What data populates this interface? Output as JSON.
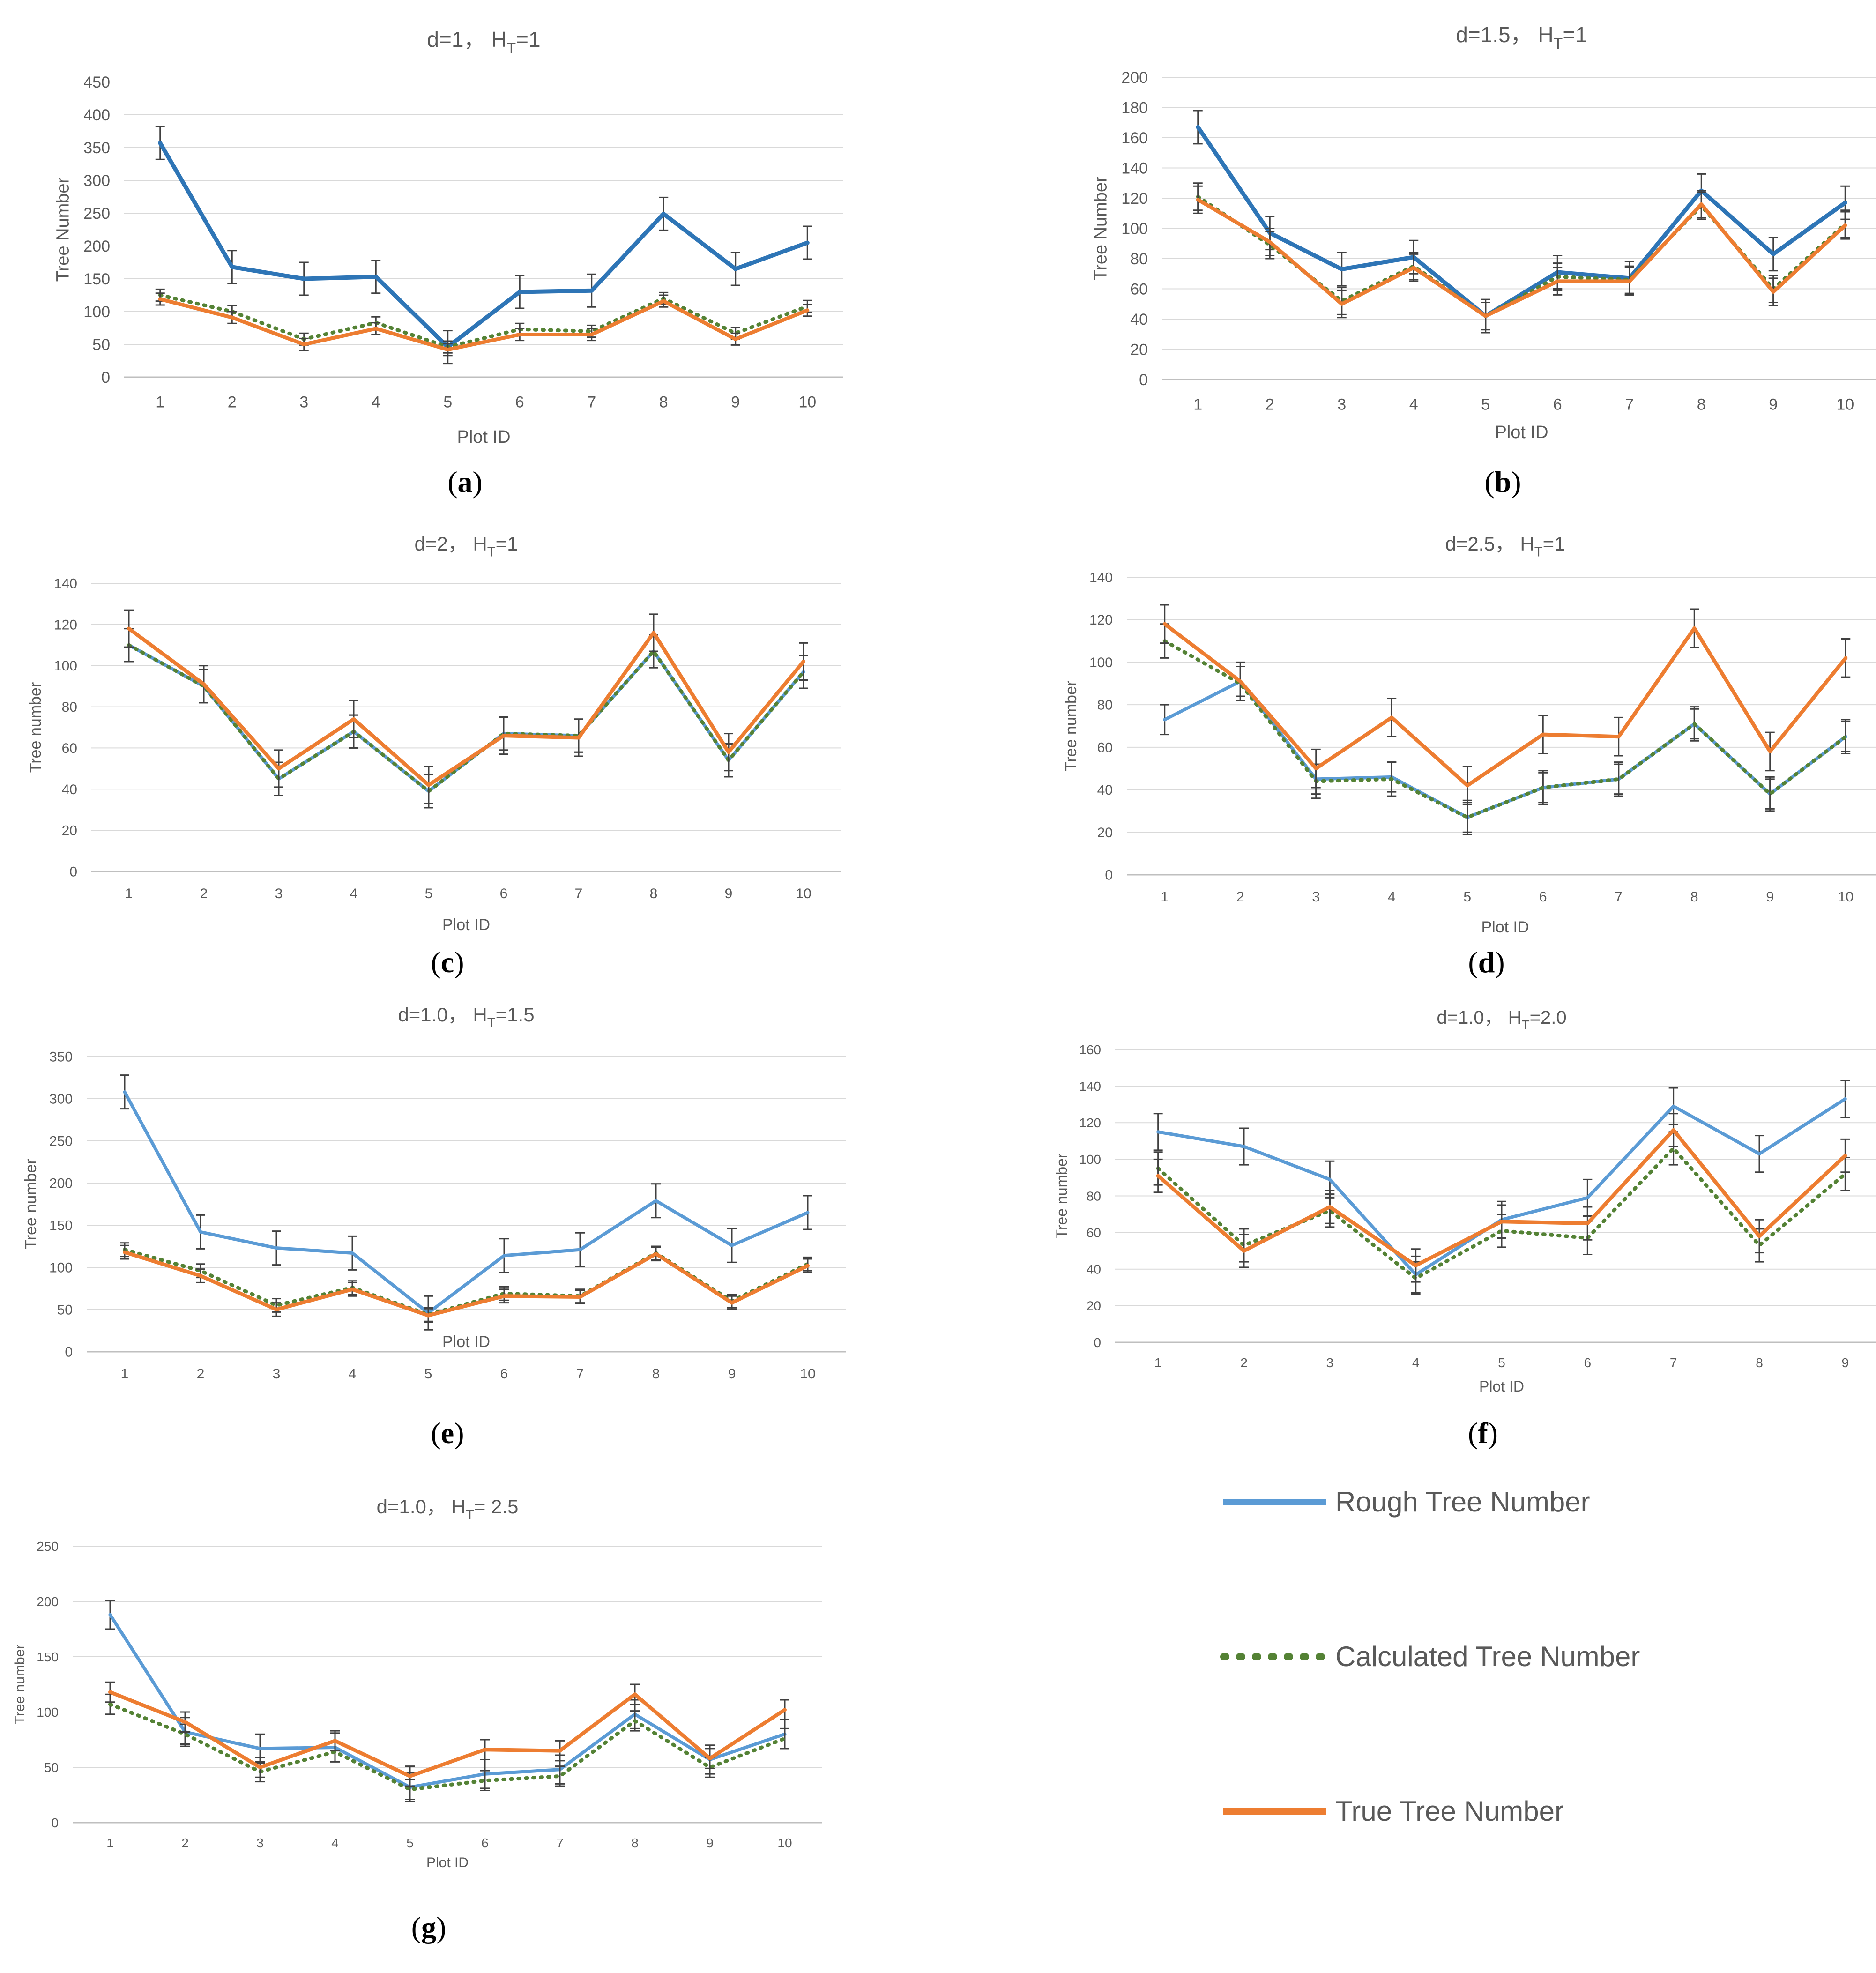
{
  "legend": {
    "items": [
      {
        "label": "Rough Tree Number",
        "color": "#5B9BD5",
        "style": "solid"
      },
      {
        "label": "Calculated Tree Number",
        "color": "#548235",
        "style": "dotted"
      },
      {
        "label": "True Tree Number",
        "color": "#ED7D31",
        "style": "solid"
      }
    ]
  },
  "chart_data": [
    {
      "id": "a",
      "panel_label": "a",
      "type": "line",
      "title_main": "d=1，  H",
      "title_sub": "T",
      "title_rest": "=1",
      "xlabel": "Plot ID",
      "ylabel": "Tree Number",
      "x": [
        1,
        2,
        3,
        4,
        5,
        6,
        7,
        8,
        9,
        10
      ],
      "ylim": [
        0,
        450
      ],
      "ystep": 50,
      "rough_color": "#2E75B6",
      "series": [
        {
          "name": "Rough Tree Number",
          "values": [
            357,
            168,
            150,
            153,
            46,
            130,
            132,
            249,
            165,
            205
          ],
          "error": [
            25,
            25,
            25,
            25,
            25,
            25,
            25,
            25,
            25,
            25
          ]
        },
        {
          "name": "Calculated Tree Number",
          "values": [
            125,
            100,
            58,
            83,
            46,
            73,
            70,
            120,
            67,
            108
          ],
          "error": [
            9,
            9,
            9,
            9,
            9,
            9,
            9,
            9,
            9,
            9
          ]
        },
        {
          "name": "True Tree Number",
          "values": [
            119,
            91,
            50,
            74,
            42,
            65,
            65,
            116,
            58,
            102
          ],
          "error": [
            9,
            9,
            9,
            9,
            9,
            9,
            9,
            9,
            9,
            9
          ]
        }
      ]
    },
    {
      "id": "b",
      "panel_label": "b",
      "type": "line",
      "title_main": "d=1.5，  H",
      "title_sub": "T",
      "title_rest": "=1",
      "xlabel": "Plot ID",
      "ylabel": "Tree Number",
      "x": [
        1,
        2,
        3,
        4,
        5,
        6,
        7,
        8,
        9,
        10
      ],
      "ylim": [
        0,
        200
      ],
      "ystep": 20,
      "rough_color": "#2E75B6",
      "series": [
        {
          "name": "Rough Tree Number",
          "values": [
            167,
            97,
            73,
            81,
            42,
            71,
            67,
            125,
            83,
            117
          ],
          "error": [
            11,
            11,
            11,
            11,
            11,
            11,
            11,
            11,
            11,
            11
          ]
        },
        {
          "name": "Calculated Tree Number",
          "values": [
            121,
            89,
            52,
            75,
            42,
            68,
            66,
            115,
            60,
            103
          ],
          "error": [
            9,
            9,
            9,
            9,
            9,
            9,
            9,
            9,
            9,
            9
          ]
        },
        {
          "name": "True Tree Number",
          "values": [
            119,
            91,
            50,
            74,
            42,
            65,
            65,
            116,
            58,
            102
          ],
          "error": [
            9,
            9,
            9,
            9,
            9,
            9,
            9,
            9,
            9,
            9
          ]
        }
      ]
    },
    {
      "id": "c",
      "panel_label": "c",
      "type": "line",
      "title_main": "d=2，  H",
      "title_sub": "T",
      "title_rest": "=1",
      "xlabel": "Plot ID",
      "ylabel": "Tree number",
      "x": [
        1,
        2,
        3,
        4,
        5,
        6,
        7,
        8,
        9,
        10
      ],
      "ylim": [
        0,
        140
      ],
      "ystep": 20,
      "rough_color": "#5B9BD5",
      "series": [
        {
          "name": "Rough Tree Number",
          "values": [
            110,
            90,
            45,
            68,
            39,
            67,
            66,
            107,
            54,
            97
          ],
          "error": [
            8,
            8,
            8,
            8,
            8,
            8,
            8,
            8,
            8,
            8
          ]
        },
        {
          "name": "Calculated Tree Number",
          "values": [
            110,
            90,
            45,
            68,
            39,
            67,
            66,
            107,
            54,
            97
          ],
          "error": [
            8,
            8,
            8,
            8,
            8,
            8,
            8,
            8,
            8,
            8
          ]
        },
        {
          "name": "True Tree Number",
          "values": [
            118,
            91,
            50,
            74,
            42,
            66,
            65,
            116,
            58,
            102
          ],
          "error": [
            9,
            9,
            9,
            9,
            9,
            9,
            9,
            9,
            9,
            9
          ]
        }
      ]
    },
    {
      "id": "d",
      "panel_label": "d",
      "type": "line",
      "title_main": "d=2.5，  H",
      "title_sub": "T",
      "title_rest": "=1",
      "xlabel": "Plot ID",
      "ylabel": "Tree number",
      "x": [
        1,
        2,
        3,
        4,
        5,
        6,
        7,
        8,
        9,
        10
      ],
      "ylim": [
        0,
        140
      ],
      "ystep": 20,
      "rough_color": "#5B9BD5",
      "series": [
        {
          "name": "Rough Tree Number",
          "values": [
            73,
            91,
            45,
            46,
            27,
            41,
            45,
            71,
            38,
            65
          ],
          "error": [
            7,
            7,
            7,
            7,
            7,
            7,
            7,
            7,
            7,
            7
          ]
        },
        {
          "name": "Calculated Tree Number",
          "values": [
            110,
            90,
            44,
            45,
            27,
            41,
            45,
            71,
            38,
            65
          ],
          "error": [
            8,
            8,
            8,
            8,
            8,
            8,
            8,
            8,
            8,
            8
          ]
        },
        {
          "name": "True Tree Number",
          "values": [
            118,
            91,
            50,
            74,
            42,
            66,
            65,
            116,
            58,
            102
          ],
          "error": [
            9,
            9,
            9,
            9,
            9,
            9,
            9,
            9,
            9,
            9
          ]
        }
      ]
    },
    {
      "id": "e",
      "panel_label": "e",
      "type": "line",
      "title_main": "d=1.0，  H",
      "title_sub": "T",
      "title_rest": "=1.5",
      "xlabel": "Plot ID",
      "ylabel": "Tree number",
      "x": [
        1,
        2,
        3,
        4,
        5,
        6,
        7,
        8,
        9,
        10
      ],
      "ylim": [
        0,
        350
      ],
      "ystep": 50,
      "rough_color": "#5B9BD5",
      "series": [
        {
          "name": "Rough Tree Number",
          "values": [
            308,
            142,
            123,
            117,
            46,
            114,
            121,
            179,
            126,
            165
          ],
          "error": [
            20,
            20,
            20,
            20,
            20,
            20,
            20,
            20,
            20,
            20
          ]
        },
        {
          "name": "Calculated Tree Number",
          "values": [
            121,
            96,
            55,
            76,
            44,
            69,
            66,
            117,
            60,
            104
          ],
          "error": [
            8,
            8,
            8,
            8,
            8,
            8,
            8,
            8,
            8,
            8
          ]
        },
        {
          "name": "True Tree Number",
          "values": [
            118,
            90,
            50,
            74,
            43,
            66,
            65,
            116,
            58,
            102
          ],
          "error": [
            8,
            8,
            8,
            8,
            8,
            8,
            8,
            8,
            8,
            8
          ]
        }
      ]
    },
    {
      "id": "f",
      "panel_label": "f",
      "type": "line",
      "title_main": "d=1.0，  H",
      "title_sub": "T",
      "title_rest": "=2.0",
      "xlabel": "Plot ID",
      "ylabel": "Tree number",
      "x": [
        1,
        2,
        3,
        4,
        5,
        6,
        7,
        8,
        9
      ],
      "ylim": [
        0,
        160
      ],
      "ystep": 20,
      "rough_color": "#5B9BD5",
      "series": [
        {
          "name": "Rough Tree Number",
          "values": [
            115,
            107,
            89,
            37,
            67,
            79,
            129,
            103,
            133
          ],
          "error": [
            10,
            10,
            10,
            10,
            10,
            10,
            10,
            10,
            10
          ]
        },
        {
          "name": "Calculated Tree Number",
          "values": [
            95,
            53,
            72,
            35,
            61,
            57,
            106,
            53,
            92
          ],
          "error": [
            9,
            9,
            9,
            9,
            9,
            9,
            9,
            9,
            9
          ]
        },
        {
          "name": "True Tree Number",
          "values": [
            91,
            50,
            74,
            42,
            66,
            65,
            116,
            58,
            102
          ],
          "error": [
            9,
            9,
            9,
            9,
            9,
            9,
            9,
            9,
            9
          ]
        }
      ]
    },
    {
      "id": "g",
      "panel_label": "g",
      "type": "line",
      "title_main": "d=1.0，  H",
      "title_sub": "T",
      "title_rest": "= 2.5",
      "xlabel": "Plot ID",
      "ylabel": "Tree number",
      "x": [
        1,
        2,
        3,
        4,
        5,
        6,
        7,
        8,
        9,
        10
      ],
      "ylim": [
        0,
        250
      ],
      "ystep": 50,
      "rough_color": "#5B9BD5",
      "series": [
        {
          "name": "Rough Tree Number",
          "values": [
            188,
            82,
            67,
            68,
            32,
            44,
            48,
            98,
            57,
            80
          ],
          "error": [
            13,
            13,
            13,
            13,
            13,
            13,
            13,
            13,
            13,
            13
          ]
        },
        {
          "name": "Calculated Tree Number",
          "values": [
            107,
            80,
            46,
            64,
            30,
            38,
            42,
            92,
            50,
            76
          ],
          "error": [
            9,
            9,
            9,
            9,
            9,
            9,
            9,
            9,
            9,
            9
          ]
        },
        {
          "name": "True Tree Number",
          "values": [
            118,
            91,
            50,
            74,
            42,
            66,
            65,
            116,
            58,
            102
          ],
          "error": [
            9,
            9,
            9,
            9,
            9,
            9,
            9,
            9,
            9,
            9
          ]
        }
      ]
    }
  ]
}
